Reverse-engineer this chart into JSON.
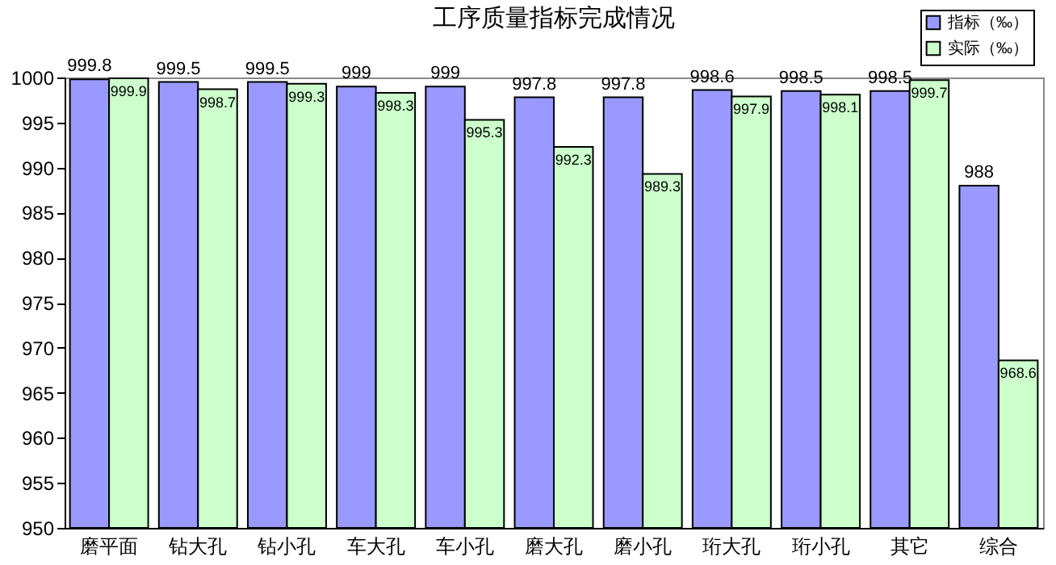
{
  "chart_data": {
    "type": "bar",
    "title": "工序质量指标完成情况",
    "categories": [
      "磨平面",
      "钻大孔",
      "钻小孔",
      "车大孔",
      "车小孔",
      "磨大孔",
      "磨小孔",
      "珩大孔",
      "珩小孔",
      "其它",
      "综合"
    ],
    "series": [
      {
        "name": "指标（‰）",
        "color": "#9999ff",
        "values": [
          999.8,
          999.5,
          999.5,
          999,
          999,
          997.8,
          997.8,
          998.6,
          998.5,
          998.5,
          988
        ]
      },
      {
        "name": "实际（‰）",
        "color": "#ccffcc",
        "values": [
          999.9,
          998.7,
          999.3,
          998.3,
          995.3,
          992.3,
          989.3,
          997.9,
          998.1,
          999.7,
          968.6
        ]
      }
    ],
    "ylim": [
      950,
      1000
    ],
    "yticks": [
      950,
      955,
      960,
      965,
      970,
      975,
      980,
      985,
      990,
      995,
      1000
    ],
    "grid": false,
    "legend": "top right",
    "data_labels": true
  }
}
